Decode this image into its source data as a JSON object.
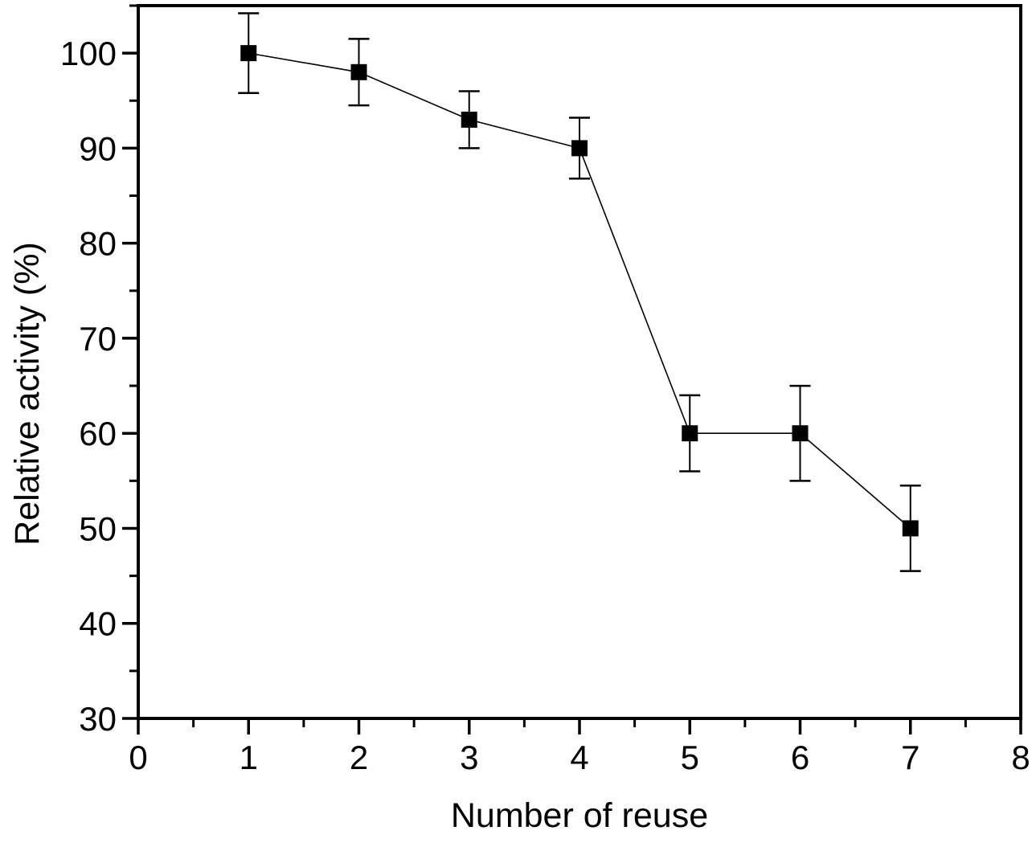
{
  "figure": {
    "background": "#ffffff"
  },
  "chart_data": {
    "type": "line",
    "title": "",
    "xlabel": "Number of reuse",
    "ylabel": "Relative activity (%)",
    "x": [
      1,
      2,
      3,
      4,
      5,
      6,
      7
    ],
    "y": [
      100,
      98,
      93,
      90,
      60,
      60,
      50
    ],
    "yerr": [
      4.2,
      3.5,
      3.0,
      3.2,
      4.0,
      5.0,
      4.5
    ],
    "xlim": [
      0,
      8
    ],
    "ylim": [
      30,
      105
    ],
    "xticks": [
      0,
      1,
      2,
      3,
      4,
      5,
      6,
      7,
      8
    ],
    "yticks": [
      30,
      40,
      50,
      60,
      70,
      80,
      90,
      100
    ],
    "xminor_step": 0.5,
    "yminor_step": 5,
    "marker": "filled-square",
    "marker_color": "#000000",
    "line_color": "#000000",
    "axis_color": "#000000",
    "error_bars": true,
    "grid": false,
    "legend": null
  }
}
